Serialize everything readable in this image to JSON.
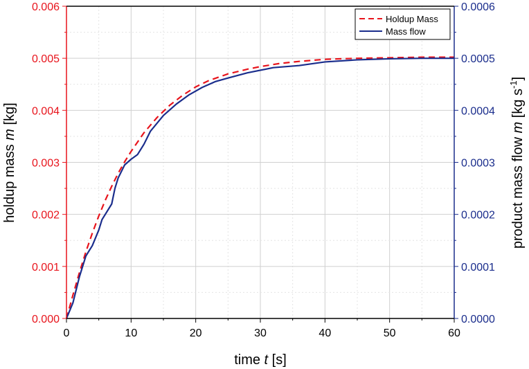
{
  "chart_data": {
    "type": "line",
    "title": "",
    "xlabel": {
      "prefix": "time ",
      "var": "t",
      "suffix": " [s]"
    },
    "ylabel_left": {
      "prefix": "holdup mass ",
      "var": "m",
      "suffix": " [kg]"
    },
    "ylabel_right": {
      "prefix": "product mass flow ",
      "var": "m",
      "suffix": " [kg s",
      "sup": "-1",
      "close": "]"
    },
    "xlim": [
      0,
      60
    ],
    "ylim_left": [
      0,
      0.006
    ],
    "ylim_right": [
      0,
      0.0006
    ],
    "x_ticks": [
      "0",
      "10",
      "20",
      "30",
      "40",
      "50",
      "60"
    ],
    "y_left_ticks": [
      "0.000",
      "0.001",
      "0.002",
      "0.003",
      "0.004",
      "0.005",
      "0.006"
    ],
    "y_right_ticks": [
      "0.0000",
      "0.0001",
      "0.0002",
      "0.0003",
      "0.0004",
      "0.0005",
      "0.0006"
    ],
    "grid": true,
    "legend_position": "top-right",
    "colors": {
      "left_axis": "#e8141c",
      "right_axis": "#1a2d8c"
    },
    "series": [
      {
        "name": "Holdup Mass",
        "axis": "left",
        "style": "dashed",
        "color": "#e8141c",
        "x": [
          0,
          1,
          2,
          3,
          4,
          5,
          6,
          7,
          8,
          9,
          10,
          12,
          14,
          16,
          18,
          20,
          22,
          25,
          28,
          30,
          33,
          36,
          40,
          45,
          50,
          55,
          60
        ],
        "y": [
          0,
          0.00045,
          0.00088,
          0.00128,
          0.00164,
          0.00197,
          0.00227,
          0.00254,
          0.00279,
          0.00301,
          0.00321,
          0.00357,
          0.00386,
          0.0041,
          0.00429,
          0.00445,
          0.00457,
          0.0047,
          0.00479,
          0.00484,
          0.0049,
          0.00494,
          0.00498,
          0.005,
          0.00501,
          0.00502,
          0.00502
        ]
      },
      {
        "name": "Mass flow",
        "axis": "right",
        "style": "solid",
        "color": "#1a2d8c",
        "x": [
          0,
          1,
          2,
          3,
          4,
          5,
          5.5,
          6,
          7,
          7.5,
          8,
          9,
          10,
          11,
          12,
          13,
          15,
          17,
          19,
          21,
          23,
          25,
          28,
          32,
          36,
          40,
          45,
          50,
          55,
          60
        ],
        "y": [
          0,
          3e-05,
          8e-05,
          0.00012,
          0.00014,
          0.00017,
          0.00019,
          0.0002,
          0.00022,
          0.00025,
          0.00027,
          0.000295,
          0.000306,
          0.000315,
          0.000335,
          0.00036,
          0.00039,
          0.000412,
          0.00043,
          0.000444,
          0.000455,
          0.000462,
          0.000472,
          0.000482,
          0.000486,
          0.000493,
          0.000497,
          0.000499,
          0.0005,
          0.0005
        ]
      }
    ]
  }
}
